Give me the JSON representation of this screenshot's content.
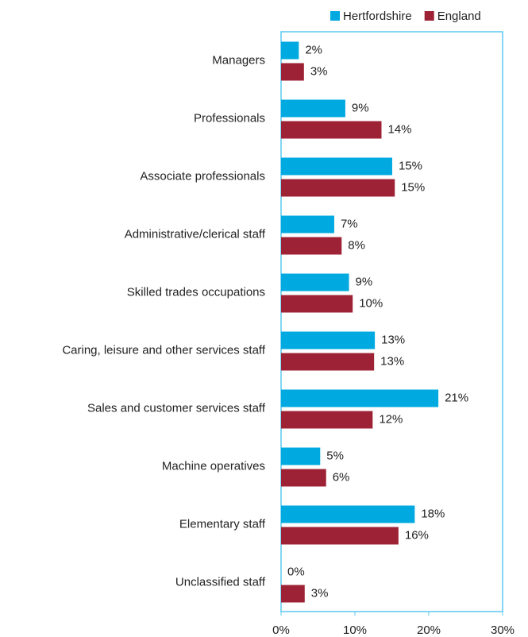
{
  "chart_data": {
    "type": "hbar",
    "categories": [
      "Managers",
      "Professionals",
      "Associate professionals",
      "Administrative/clerical staff",
      "Skilled trades occupations",
      "Caring, leisure and other services staff",
      "Sales and customer services staff",
      "Machine operatives",
      "Elementary staff",
      "Unclassified staff"
    ],
    "series": [
      {
        "name": "Hertfordshire",
        "color": "#00a9e0",
        "values": [
          2.4,
          8.7,
          15.05,
          7.2,
          9.2,
          12.7,
          21.3,
          5.3,
          18.1,
          0
        ],
        "value_labels": [
          "2%",
          "9%",
          "15%",
          "7%",
          "9%",
          "13%",
          "21%",
          "5%",
          "18%",
          "0%"
        ]
      },
      {
        "name": "England",
        "color": "#9e2235",
        "values": [
          3.1,
          13.6,
          15.4,
          8.2,
          9.7,
          12.6,
          12.4,
          6.1,
          15.9,
          3.2
        ],
        "value_labels": [
          "3%",
          "14%",
          "15%",
          "8%",
          "10%",
          "13%",
          "12%",
          "6%",
          "16%",
          "3%"
        ]
      }
    ],
    "xlim": [
      0,
      30
    ],
    "xticks": [
      {
        "value": 0,
        "label": "0%"
      },
      {
        "value": 10,
        "label": "10%"
      },
      {
        "value": 20,
        "label": "20%"
      },
      {
        "value": 30,
        "label": "30%"
      }
    ],
    "legend": "top"
  }
}
